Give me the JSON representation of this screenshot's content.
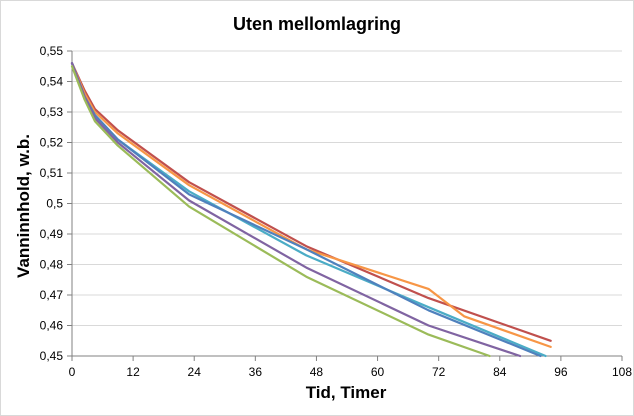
{
  "chart_data": {
    "type": "line",
    "title": "Uten mellomlagring",
    "xlabel": "Tid, Timer",
    "ylabel": "Vanninnhold, w.b.",
    "xlim": [
      0,
      108
    ],
    "ylim": [
      0.45,
      0.55
    ],
    "xticks": [
      0,
      12,
      24,
      36,
      48,
      60,
      72,
      84,
      96,
      108
    ],
    "yticks": [
      0.45,
      0.46,
      0.47,
      0.48,
      0.49,
      0.5,
      0.51,
      0.52,
      0.53,
      0.54,
      0.55
    ],
    "ytick_labels": [
      "0,45",
      "0,46",
      "0,47",
      "0,48",
      "0,49",
      "0,5",
      "0,51",
      "0,52",
      "0,53",
      "0,54",
      "0,55"
    ],
    "grid": "horizontal",
    "legend": "none",
    "series": [
      {
        "color": "#c0504d",
        "x": [
          0,
          2.5,
          4.5,
          9,
          23,
          46,
          70,
          94
        ],
        "y": [
          0.546,
          0.537,
          0.531,
          0.524,
          0.507,
          0.486,
          0.469,
          0.455
        ]
      },
      {
        "color": "#f79646",
        "x": [
          0,
          2.5,
          4.5,
          9,
          23,
          46,
          70,
          77,
          94
        ],
        "y": [
          0.546,
          0.536,
          0.53,
          0.523,
          0.506,
          0.485,
          0.472,
          0.463,
          0.453
        ]
      },
      {
        "color": "#4bacc6",
        "x": [
          0,
          2.5,
          4.5,
          9,
          23,
          46,
          70,
          93
        ],
        "y": [
          0.546,
          0.535,
          0.529,
          0.521,
          0.504,
          0.483,
          0.466,
          0.45
        ]
      },
      {
        "color": "#4f81bd",
        "x": [
          0,
          2.5,
          4.5,
          9,
          23,
          46,
          70,
          92
        ],
        "y": [
          0.546,
          0.535,
          0.529,
          0.521,
          0.503,
          0.485,
          0.465,
          0.45
        ]
      },
      {
        "color": "#8064a2",
        "x": [
          0,
          2.5,
          4.5,
          9,
          23,
          46,
          70,
          88
        ],
        "y": [
          0.546,
          0.535,
          0.528,
          0.52,
          0.501,
          0.479,
          0.46,
          0.45
        ]
      },
      {
        "color": "#9bbb59",
        "x": [
          0,
          2.5,
          4.5,
          9,
          23,
          46,
          70,
          82
        ],
        "y": [
          0.545,
          0.534,
          0.527,
          0.519,
          0.499,
          0.476,
          0.457,
          0.45
        ]
      }
    ]
  }
}
